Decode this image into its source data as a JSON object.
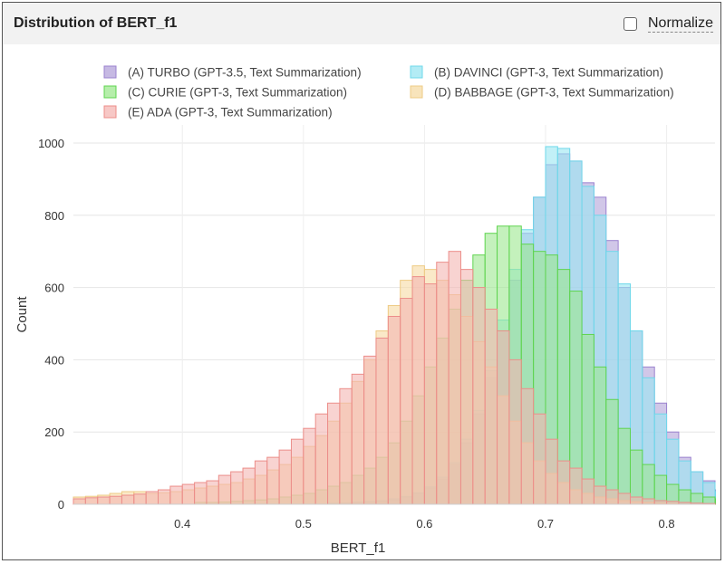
{
  "header": {
    "title": "Distribution of BERT_f1",
    "normalize_label": "Normalize",
    "normalize_checked": false
  },
  "chart_data": {
    "type": "bar",
    "subtype": "overlaid-histogram",
    "xlabel": "BERT_f1",
    "ylabel": "Count",
    "xlim": [
      0.31,
      0.84
    ],
    "ylim": [
      0,
      1050
    ],
    "x_ticks": [
      0.4,
      0.5,
      0.6,
      0.7,
      0.8
    ],
    "y_ticks": [
      0,
      200,
      400,
      600,
      800,
      1000
    ],
    "grid": true,
    "legend_position": "top",
    "bin_start": 0.31,
    "bin_width": 0.01,
    "series": [
      {
        "name": "(A) TURBO (GPT-3.5, Text Summarization)",
        "fill": "#b3a2d9",
        "stroke": "#9b82cf",
        "values": [
          0,
          0,
          0,
          0,
          0,
          0,
          0,
          0,
          0,
          0,
          0,
          0,
          0,
          0,
          0,
          0,
          0,
          0,
          0,
          0,
          0,
          2,
          3,
          4,
          6,
          8,
          12,
          20,
          30,
          45,
          70,
          110,
          170,
          250,
          350,
          480,
          620,
          750,
          850,
          940,
          970,
          950,
          890,
          850,
          730,
          600,
          480,
          380,
          280,
          200,
          130,
          90,
          65,
          40,
          25,
          15,
          10,
          8,
          5
        ]
      },
      {
        "name": "(B) DAVINCI (GPT-3, Text Summarization)",
        "fill": "#9ae6f2",
        "stroke": "#6fd8ea",
        "values": [
          0,
          0,
          0,
          0,
          0,
          0,
          0,
          0,
          0,
          0,
          0,
          0,
          0,
          0,
          0,
          0,
          0,
          0,
          0,
          0,
          0,
          3,
          4,
          6,
          8,
          10,
          15,
          22,
          32,
          48,
          75,
          115,
          180,
          260,
          370,
          510,
          650,
          760,
          850,
          990,
          985,
          950,
          880,
          800,
          700,
          610,
          480,
          350,
          250,
          180,
          120,
          90,
          60,
          35,
          20,
          10,
          5,
          3,
          2
        ]
      },
      {
        "name": "(C) CURIE (GPT-3, Text Summarization)",
        "fill": "#9de88f",
        "stroke": "#5fd44f",
        "values": [
          0,
          0,
          0,
          0,
          0,
          0,
          0,
          0,
          0,
          0,
          5,
          5,
          6,
          8,
          10,
          12,
          15,
          20,
          25,
          30,
          40,
          50,
          60,
          80,
          100,
          130,
          170,
          230,
          300,
          380,
          460,
          540,
          620,
          690,
          750,
          770,
          770,
          720,
          700,
          690,
          650,
          590,
          470,
          380,
          290,
          210,
          150,
          110,
          80,
          55,
          40,
          30,
          20,
          15,
          10,
          8,
          6,
          4,
          2
        ]
      },
      {
        "name": "(D) BABBAGE (GPT-3, Text Summarization)",
        "fill": "#f6dba4",
        "stroke": "#eecb85",
        "values": [
          20,
          22,
          25,
          30,
          35,
          35,
          30,
          32,
          35,
          40,
          45,
          50,
          55,
          60,
          70,
          80,
          95,
          110,
          130,
          160,
          190,
          230,
          280,
          340,
          400,
          480,
          550,
          620,
          660,
          650,
          620,
          580,
          520,
          450,
          380,
          300,
          230,
          170,
          120,
          85,
          60,
          40,
          30,
          20,
          15,
          10,
          7,
          5,
          3,
          2,
          0,
          0,
          0,
          0,
          0,
          0,
          0,
          0,
          0
        ]
      },
      {
        "name": "(E) ADA (GPT-3, Text Summarization)",
        "fill": "#f4b6b3",
        "stroke": "#ec8e8a",
        "values": [
          15,
          18,
          20,
          22,
          25,
          28,
          35,
          40,
          50,
          55,
          60,
          65,
          80,
          90,
          100,
          120,
          130,
          150,
          180,
          210,
          250,
          280,
          320,
          360,
          410,
          460,
          520,
          570,
          630,
          610,
          670,
          700,
          650,
          600,
          540,
          480,
          400,
          320,
          250,
          180,
          120,
          100,
          70,
          50,
          40,
          30,
          20,
          15,
          10,
          8,
          5,
          3,
          2,
          0,
          0,
          0,
          0,
          0,
          0
        ]
      }
    ]
  }
}
